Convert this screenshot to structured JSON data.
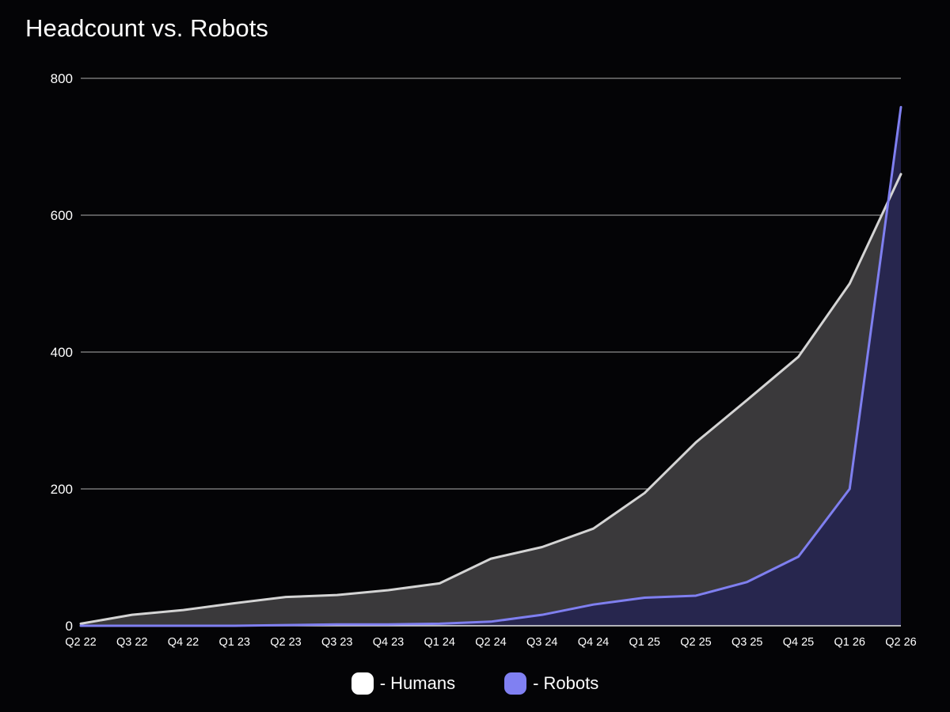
{
  "chart_data": {
    "type": "area",
    "title": "Headcount vs. Robots",
    "xlabel": "",
    "ylabel": "",
    "categories": [
      "Q2 22",
      "Q3 22",
      "Q4 22",
      "Q1 23",
      "Q2 23",
      "Q3 23",
      "Q4 23",
      "Q1 24",
      "Q2 24",
      "Q3 24",
      "Q4 24",
      "Q1 25",
      "Q2 25",
      "Q3 25",
      "Q4 25",
      "Q1 26",
      "Q2 26"
    ],
    "ylim": [
      0,
      800
    ],
    "yticks": [
      0,
      200,
      400,
      600,
      800
    ],
    "grid": true,
    "legend_position": "bottom-center",
    "series": [
      {
        "name": "Humans",
        "legend_label": "- Humans",
        "color": "#d4d4d4",
        "fill": "#3a393b",
        "values": [
          3,
          16,
          23,
          33,
          42,
          45,
          52,
          62,
          98,
          115,
          142,
          194,
          268,
          330,
          393,
          500,
          660
        ]
      },
      {
        "name": "Robots",
        "legend_label": "- Robots",
        "color": "#7f7ff0",
        "fill": "#262550",
        "values": [
          0,
          0,
          0,
          0,
          1,
          2,
          2,
          3,
          6,
          16,
          31,
          41,
          44,
          64,
          101,
          200,
          758
        ]
      }
    ]
  }
}
